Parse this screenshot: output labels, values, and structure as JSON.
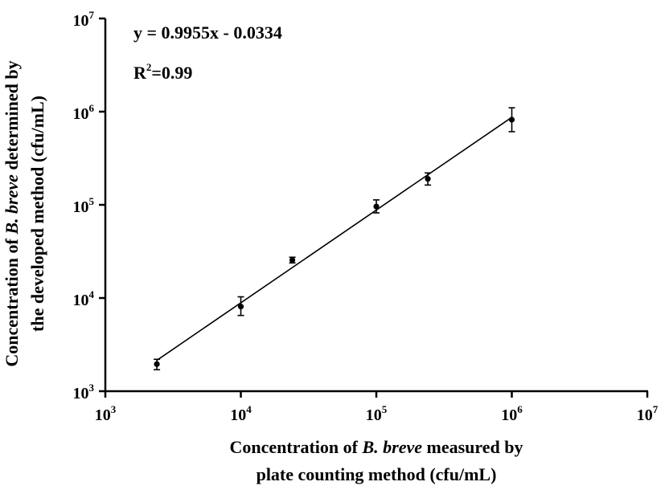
{
  "chart_data": {
    "type": "scatter",
    "x_scale": "log",
    "y_scale": "log",
    "xlim": [
      1000,
      10000000
    ],
    "ylim": [
      1000,
      10000000
    ],
    "x_ticks": [
      {
        "value": 1000,
        "base": "10",
        "exp": "3"
      },
      {
        "value": 10000,
        "base": "10",
        "exp": "4"
      },
      {
        "value": 100000,
        "base": "10",
        "exp": "5"
      },
      {
        "value": 1000000,
        "base": "10",
        "exp": "6"
      },
      {
        "value": 10000000,
        "base": "10",
        "exp": "7"
      }
    ],
    "y_ticks": [
      {
        "value": 1000,
        "base": "10",
        "exp": "3"
      },
      {
        "value": 10000,
        "base": "10",
        "exp": "4"
      },
      {
        "value": 100000,
        "base": "10",
        "exp": "5"
      },
      {
        "value": 1000000,
        "base": "10",
        "exp": "6"
      },
      {
        "value": 10000000,
        "base": "10",
        "exp": "7"
      }
    ],
    "xlabel": {
      "line1_pre": "Concentration of ",
      "line1_italic": "B. breve",
      "line1_post": " measured by",
      "line2": "plate counting method  (cfu/mL)"
    },
    "ylabel": {
      "line1_pre": "Concentration of ",
      "line1_italic": "B. breve",
      "line1_post": " determined by",
      "line2": "the developed method  (cfu/mL)"
    },
    "points": [
      {
        "x": 2400,
        "y": 1950,
        "err_low": 1700,
        "err_high": 2200
      },
      {
        "x": 10000,
        "y": 8100,
        "err_low": 6500,
        "err_high": 10300
      },
      {
        "x": 24000,
        "y": 25500,
        "err_low": 23800,
        "err_high": 27400
      },
      {
        "x": 100000,
        "y": 96000,
        "err_low": 82000,
        "err_high": 113000
      },
      {
        "x": 240000,
        "y": 190000,
        "err_low": 163000,
        "err_high": 220000
      },
      {
        "x": 1000000,
        "y": 820000,
        "err_low": 610000,
        "err_high": 1100000
      }
    ],
    "fit_line": {
      "x_start": 2400,
      "x_end": 1000000,
      "slope": 0.9955,
      "intercept": -0.0334
    },
    "annotations": {
      "equation": "y = 0.9955x - 0.0334",
      "r2_prefix": "R",
      "r2_sup": "2",
      "r2_value": "=0.99"
    },
    "grid": false
  }
}
